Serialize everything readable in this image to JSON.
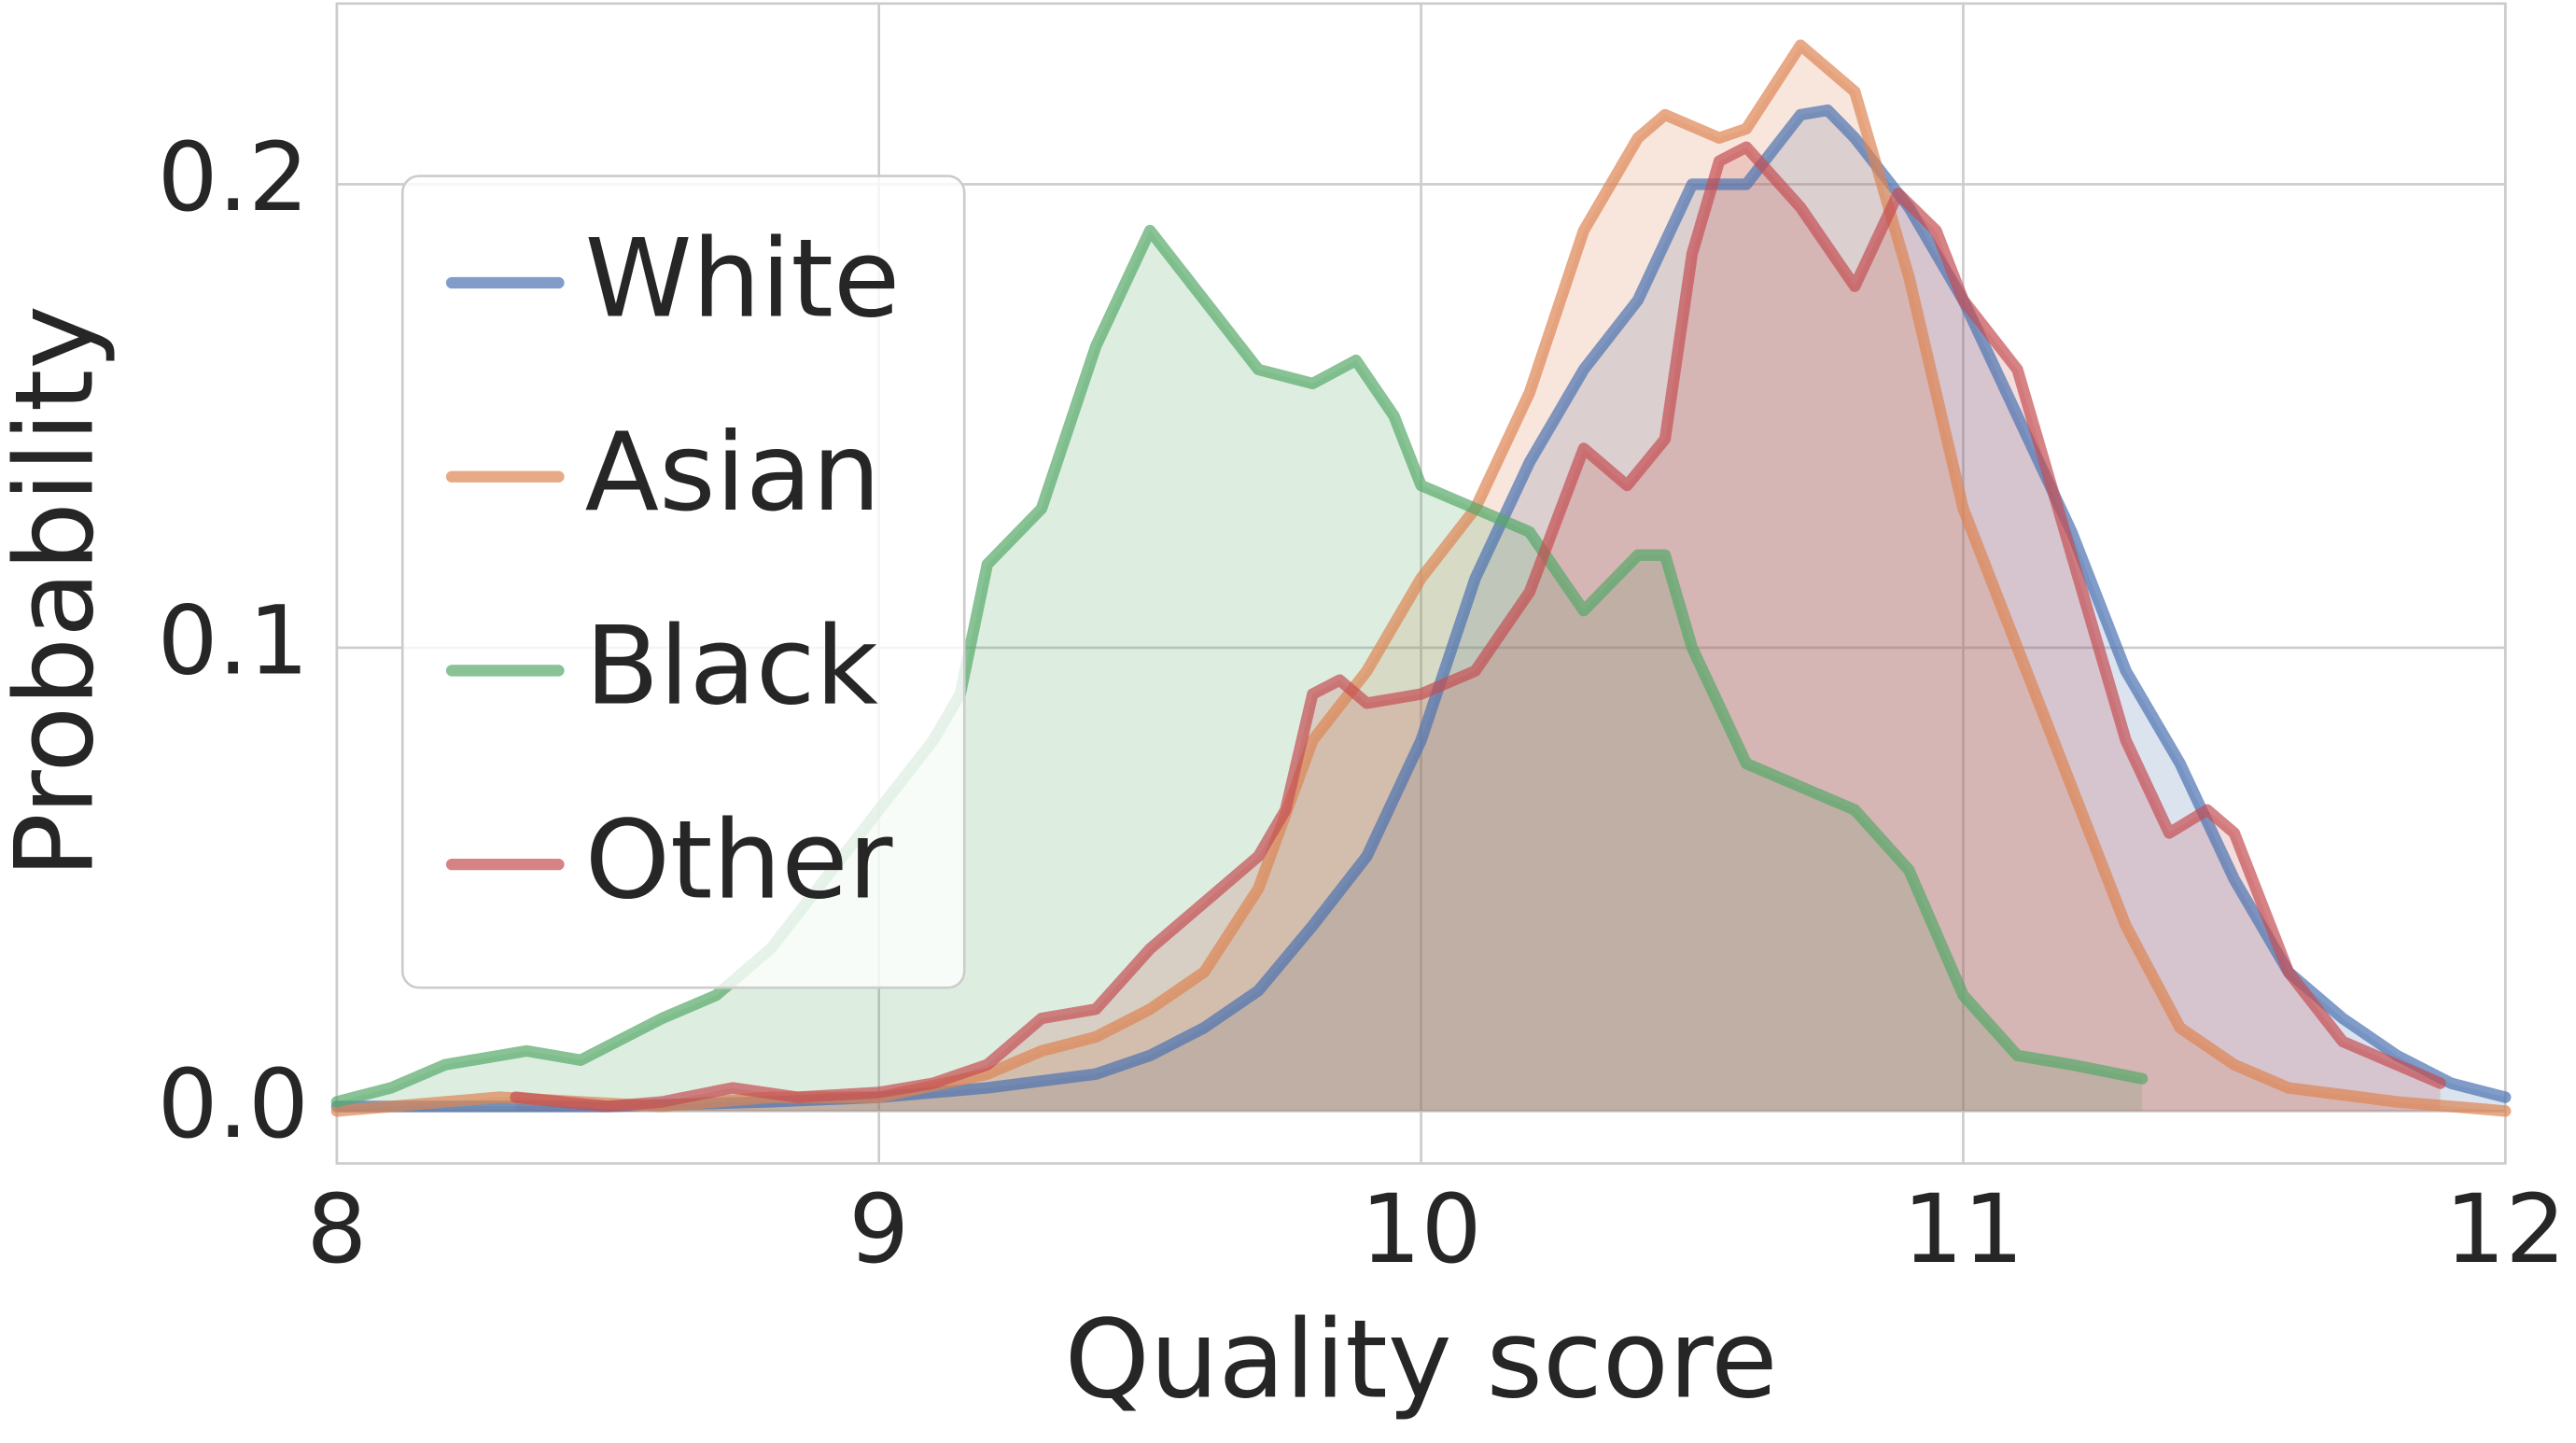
{
  "chart_data": {
    "type": "line",
    "fill": true,
    "grid": true,
    "legend": "upper left",
    "xlabel": "Quality score",
    "ylabel": "Probability",
    "xlim": [
      8,
      12
    ],
    "ylim": [
      -0.0113,
      0.239
    ],
    "xticks": [
      8,
      9,
      10,
      11,
      12
    ],
    "yticks": [
      {
        "value": 0,
        "label": "0.0"
      },
      {
        "value": 0.1,
        "label": "0.1"
      },
      {
        "value": 0.2,
        "label": "0.2"
      }
    ],
    "series": [
      {
        "name": "White",
        "color": "#4c72b0",
        "x": [
          8.0,
          8.2,
          8.5,
          8.8,
          9.0,
          9.2,
          9.4,
          9.5,
          9.6,
          9.7,
          9.8,
          9.9,
          10.0,
          10.1,
          10.2,
          10.3,
          10.4,
          10.5,
          10.6,
          10.7,
          10.75,
          10.8,
          10.9,
          11.0,
          11.1,
          11.2,
          11.3,
          11.4,
          11.5,
          11.6,
          11.7,
          11.8,
          11.9,
          12.0
        ],
        "values": [
          0.001,
          0.001,
          0.001,
          0.002,
          0.003,
          0.005,
          0.008,
          0.012,
          0.018,
          0.026,
          0.04,
          0.055,
          0.08,
          0.115,
          0.14,
          0.16,
          0.175,
          0.2,
          0.2,
          0.215,
          0.216,
          0.21,
          0.195,
          0.175,
          0.15,
          0.125,
          0.095,
          0.075,
          0.05,
          0.03,
          0.02,
          0.012,
          0.006,
          0.003
        ]
      },
      {
        "name": "Asian",
        "color": "#dd8452",
        "x": [
          8.0,
          8.3,
          8.6,
          8.8,
          9.0,
          9.2,
          9.3,
          9.4,
          9.5,
          9.6,
          9.7,
          9.8,
          9.9,
          10.0,
          10.1,
          10.2,
          10.3,
          10.4,
          10.45,
          10.55,
          10.6,
          10.7,
          10.8,
          10.9,
          11.0,
          11.1,
          11.2,
          11.3,
          11.4,
          11.5,
          11.6,
          11.8,
          12.0
        ],
        "values": [
          0.0,
          0.003,
          0.001,
          0.003,
          0.003,
          0.008,
          0.013,
          0.016,
          0.022,
          0.03,
          0.048,
          0.08,
          0.095,
          0.115,
          0.13,
          0.155,
          0.19,
          0.21,
          0.215,
          0.21,
          0.212,
          0.23,
          0.22,
          0.18,
          0.13,
          0.1,
          0.07,
          0.04,
          0.018,
          0.01,
          0.005,
          0.002,
          0.0
        ]
      },
      {
        "name": "Black",
        "color": "#55a868",
        "x": [
          8.0,
          8.1,
          8.2,
          8.35,
          8.45,
          8.6,
          8.7,
          8.8,
          8.9,
          9.0,
          9.1,
          9.15,
          9.2,
          9.3,
          9.4,
          9.5,
          9.6,
          9.7,
          9.8,
          9.88,
          9.95,
          10.0,
          10.1,
          10.2,
          10.3,
          10.4,
          10.45,
          10.5,
          10.6,
          10.7,
          10.8,
          10.9,
          11.0,
          11.1,
          11.2,
          11.33
        ],
        "values": [
          0.002,
          0.005,
          0.01,
          0.013,
          0.011,
          0.02,
          0.025,
          0.035,
          0.05,
          0.065,
          0.08,
          0.09,
          0.118,
          0.13,
          0.165,
          0.19,
          0.175,
          0.16,
          0.157,
          0.162,
          0.15,
          0.135,
          0.13,
          0.125,
          0.108,
          0.12,
          0.12,
          0.1,
          0.075,
          0.07,
          0.065,
          0.052,
          0.025,
          0.012,
          0.01,
          0.007
        ]
      },
      {
        "name": "Other",
        "color": "#c44e52",
        "x": [
          8.33,
          8.5,
          8.6,
          8.73,
          8.85,
          9.0,
          9.1,
          9.2,
          9.3,
          9.4,
          9.5,
          9.6,
          9.7,
          9.75,
          9.8,
          9.85,
          9.9,
          10.0,
          10.1,
          10.2,
          10.3,
          10.38,
          10.45,
          10.5,
          10.55,
          10.6,
          10.7,
          10.8,
          10.88,
          10.95,
          11.0,
          11.1,
          11.2,
          11.3,
          11.38,
          11.45,
          11.5,
          11.6,
          11.7,
          11.8,
          11.88
        ],
        "values": [
          0.003,
          0.001,
          0.002,
          0.005,
          0.003,
          0.004,
          0.006,
          0.01,
          0.02,
          0.022,
          0.035,
          0.045,
          0.055,
          0.065,
          0.09,
          0.093,
          0.088,
          0.09,
          0.095,
          0.112,
          0.143,
          0.135,
          0.145,
          0.185,
          0.205,
          0.208,
          0.195,
          0.178,
          0.198,
          0.19,
          0.175,
          0.16,
          0.12,
          0.08,
          0.06,
          0.065,
          0.06,
          0.03,
          0.015,
          0.01,
          0.006
        ]
      }
    ]
  }
}
